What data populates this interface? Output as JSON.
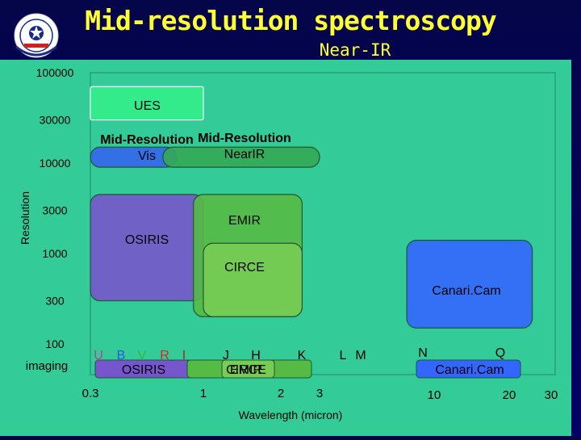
{
  "header": {
    "title": "Mid-resolution spectroscopy",
    "subtitle": "Near-IR"
  },
  "logo_icon": "observatory-seal-icon",
  "colors": {
    "title": "#ffff33",
    "panel": "#33cc99",
    "ues": "#33ee88",
    "mid_vis": "#3366ee",
    "mid_nir": "#33aa55",
    "osiris": "#7755cc",
    "emir": "#55bb44",
    "circe": "#77cc55",
    "canaricam": "#3366ff",
    "u_filter": "#cc3399",
    "b_filter": "#3355dd",
    "v_filter": "#33bb33",
    "r_filter": "#dd2222",
    "i_filter": "#aa2222",
    "ir_filter": "#000000"
  },
  "chart_data": {
    "type": "diagram",
    "xlabel": "Wavelength (micron)",
    "ylabel": "Resolution",
    "x_scale": "log",
    "y_scale": "log",
    "x_ticks": [
      {
        "value": 0.3,
        "label": "0.3"
      },
      {
        "value": 1,
        "label": "1"
      },
      {
        "value": 2,
        "label": "2"
      },
      {
        "value": 3,
        "label": "3"
      },
      {
        "value": 10,
        "label": "10"
      },
      {
        "value": 20,
        "label": "20"
      },
      {
        "value": 30,
        "label": "30"
      }
    ],
    "y_ticks": [
      {
        "value": 100000,
        "label": "100000"
      },
      {
        "value": 30000,
        "label": "30000"
      },
      {
        "value": 10000,
        "label": "10000"
      },
      {
        "value": 3000,
        "label": "3000"
      },
      {
        "value": 1000,
        "label": "1000"
      },
      {
        "value": 300,
        "label": "300"
      },
      {
        "value": 100,
        "label": "100"
      }
    ],
    "imaging_label": "imaging",
    "instruments": [
      {
        "label": "UES",
        "x": [
          0.3,
          1.0
        ],
        "y": [
          30000,
          70000
        ],
        "color_key": "ues"
      },
      {
        "label": "Mid-Resolution Vis",
        "x": [
          0.3,
          0.75
        ],
        "y": [
          9000,
          15000
        ],
        "color_key": "mid_vis"
      },
      {
        "label": "Mid-Resolution NearIR",
        "x": [
          0.65,
          3.0
        ],
        "y": [
          9000,
          15000
        ],
        "color_key": "mid_nir"
      },
      {
        "label": "OSIRIS",
        "x": [
          0.3,
          1.0
        ],
        "y": [
          300,
          4500
        ],
        "color_key": "osiris"
      },
      {
        "label": "EMIR",
        "x": [
          0.9,
          2.5
        ],
        "y": [
          200,
          4500
        ],
        "color_key": "emir"
      },
      {
        "label": "CIRCE",
        "x": [
          1.0,
          2.5
        ],
        "y": [
          200,
          1300
        ],
        "color_key": "circe"
      },
      {
        "label": "Canari.Cam",
        "x": [
          7.5,
          25
        ],
        "y": [
          150,
          1400
        ],
        "color_key": "canaricam"
      }
    ],
    "imaging_bars": [
      {
        "label": "OSIRIS",
        "color_key": "osiris"
      },
      {
        "label": "EMIR",
        "color_key": "emir"
      },
      {
        "label": "CIRCE",
        "color_key": "circe"
      },
      {
        "label": "Canari.Cam",
        "color_key": "canaricam"
      }
    ],
    "filters": [
      {
        "label": "U",
        "color_key": "u_filter"
      },
      {
        "label": "B",
        "color_key": "b_filter"
      },
      {
        "label": "V",
        "color_key": "v_filter"
      },
      {
        "label": "R",
        "color_key": "r_filter"
      },
      {
        "label": "I",
        "color_key": "i_filter"
      },
      {
        "label": "J",
        "color_key": "ir_filter"
      },
      {
        "label": "H",
        "color_key": "ir_filter"
      },
      {
        "label": "K",
        "color_key": "ir_filter"
      },
      {
        "label": "L",
        "color_key": "ir_filter"
      },
      {
        "label": "M",
        "color_key": "ir_filter"
      },
      {
        "label": "N",
        "color_key": "ir_filter"
      },
      {
        "label": "Q",
        "color_key": "ir_filter"
      }
    ]
  }
}
